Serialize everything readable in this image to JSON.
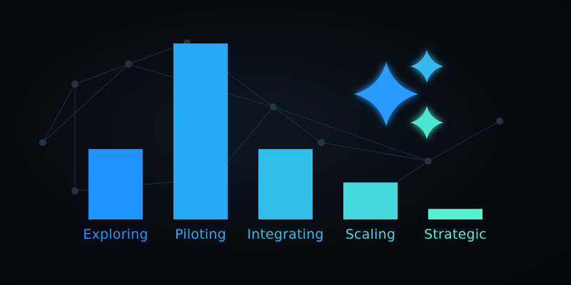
{
  "chart_data": {
    "type": "bar",
    "title": "",
    "xlabel": "",
    "ylabel": "",
    "categories": [
      "Exploring",
      "Piloting",
      "Integrating",
      "Scaling",
      "Strategic"
    ],
    "values": [
      40,
      100,
      40,
      21,
      6
    ],
    "ylim": [
      0,
      100
    ],
    "grid": false,
    "legend": "none",
    "colors": [
      "#1f93ff",
      "#27aaf5",
      "#2fbfe8",
      "#44d9df",
      "#52f0cc"
    ]
  },
  "decor": {
    "sparkle_colors": [
      "#2a9cff",
      "#35b8f0",
      "#4fe6d0"
    ],
    "network_color": "#1d3040"
  }
}
